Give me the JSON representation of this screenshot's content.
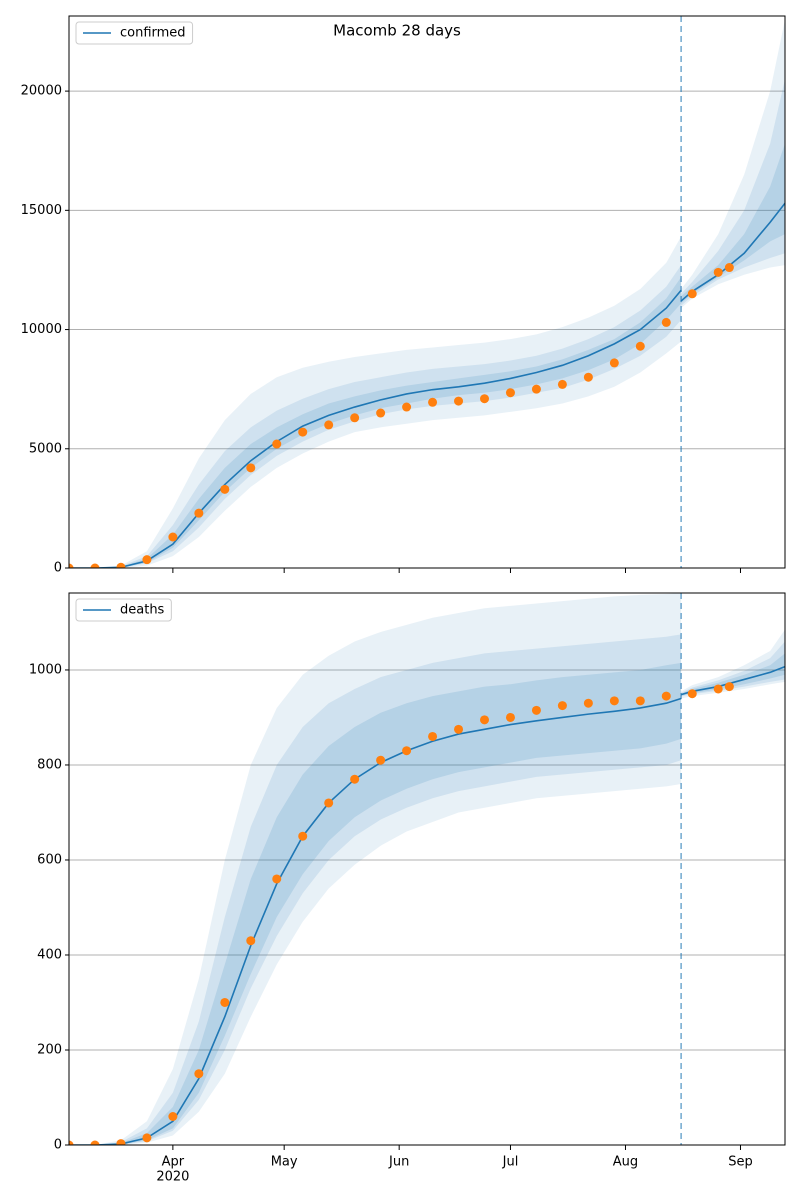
{
  "chart_data": [
    {
      "type": "line",
      "title": "Macomb 28 days",
      "xlim": [
        "2020-03-04",
        "2020-09-13"
      ],
      "xticks": [
        {
          "value": "2020-04-01",
          "label": ""
        },
        {
          "value": "2020-05-01",
          "label": ""
        },
        {
          "value": "2020-06-01",
          "label": ""
        },
        {
          "value": "2020-07-01",
          "label": ""
        },
        {
          "value": "2020-08-01",
          "label": ""
        },
        {
          "value": "2020-09-01",
          "label": ""
        }
      ],
      "ylim": [
        0,
        23150
      ],
      "yticks": [
        0,
        5000,
        10000,
        15000,
        20000
      ],
      "grid": true,
      "legend": "upper left",
      "vline": "2020-08-16",
      "series": [
        {
          "name": "confirmed",
          "color": "#1f77b4",
          "x": [
            "2020-03-04",
            "2020-03-11",
            "2020-03-18",
            "2020-03-25",
            "2020-04-01",
            "2020-04-08",
            "2020-04-15",
            "2020-04-22",
            "2020-04-29",
            "2020-05-06",
            "2020-05-13",
            "2020-05-20",
            "2020-05-27",
            "2020-06-03",
            "2020-06-10",
            "2020-06-17",
            "2020-06-24",
            "2020-07-01",
            "2020-07-08",
            "2020-07-15",
            "2020-07-22",
            "2020-07-29",
            "2020-08-05",
            "2020-08-12",
            "2020-08-16"
          ],
          "values": [
            0,
            0,
            30,
            300,
            1000,
            2300,
            3500,
            4500,
            5300,
            5950,
            6400,
            6750,
            7050,
            7300,
            7480,
            7600,
            7750,
            7950,
            8200,
            8500,
            8900,
            9400,
            10000,
            10900,
            11650
          ],
          "bands": [
            {
              "lower": [
                0,
                0,
                0,
                100,
                500,
                1300,
                2400,
                3400,
                4200,
                4800,
                5300,
                5700,
                5900,
                6050,
                6200,
                6300,
                6400,
                6550,
                6700,
                6900,
                7200,
                7600,
                8200,
                9000,
                9500
              ],
              "upper": [
                0,
                0,
                100,
                700,
                2500,
                4600,
                6200,
                7300,
                8000,
                8400,
                8650,
                8850,
                9000,
                9150,
                9250,
                9350,
                9450,
                9600,
                9800,
                10100,
                10500,
                11000,
                11700,
                12800,
                13900
              ]
            },
            {
              "lower": [
                0,
                0,
                10,
                200,
                700,
                1700,
                2900,
                3900,
                4700,
                5300,
                5800,
                6150,
                6450,
                6650,
                6800,
                6900,
                7000,
                7150,
                7350,
                7550,
                7900,
                8350,
                8900,
                9700,
                10400
              ],
              "upper": [
                0,
                0,
                70,
                500,
                1800,
                3500,
                4900,
                5900,
                6600,
                7100,
                7500,
                7800,
                8000,
                8200,
                8350,
                8450,
                8550,
                8700,
                8900,
                9200,
                9600,
                10100,
                10800,
                11800,
                12700
              ]
            },
            {
              "lower": [
                0,
                0,
                20,
                220,
                850,
                2000,
                3200,
                4200,
                5000,
                5600,
                6050,
                6400,
                6700,
                6900,
                7100,
                7250,
                7350,
                7500,
                7700,
                7950,
                8300,
                8750,
                9400,
                10400,
                11100
              ],
              "upper": [
                0,
                0,
                50,
                400,
                1400,
                2900,
                4200,
                5200,
                5900,
                6450,
                6900,
                7200,
                7450,
                7650,
                7800,
                7950,
                8100,
                8250,
                8450,
                8750,
                9150,
                9600,
                10300,
                11300,
                12200
              ]
            }
          ],
          "forecast": {
            "x": [
              "2020-08-16",
              "2020-08-19",
              "2020-08-26",
              "2020-09-02",
              "2020-09-09",
              "2020-09-13"
            ],
            "values": [
              11200,
              11600,
              12300,
              13200,
              14500,
              15300
            ],
            "bands": [
              {
                "lower": [
                  10900,
                  11300,
                  11900,
                  12300,
                  12600,
                  12700
                ],
                "upper": [
                  11700,
                  12300,
                  14000,
                  16500,
                  20000,
                  23000
                ]
              },
              {
                "lower": [
                  11000,
                  11400,
                  12100,
                  12600,
                  13000,
                  13200
                ],
                "upper": [
                  11500,
                  12000,
                  13300,
                  15000,
                  17800,
                  20500
                ]
              },
              {
                "lower": [
                  11100,
                  11500,
                  12200,
                  12900,
                  13700,
                  14000
                ],
                "upper": [
                  11400,
                  11800,
                  12700,
                  14000,
                  16000,
                  17800
                ]
              }
            ]
          }
        }
      ],
      "observed": {
        "color": "#ff7f0e",
        "x": [
          "2020-03-04",
          "2020-03-11",
          "2020-03-18",
          "2020-03-25",
          "2020-04-01",
          "2020-04-08",
          "2020-04-15",
          "2020-04-22",
          "2020-04-29",
          "2020-05-06",
          "2020-05-13",
          "2020-05-20",
          "2020-05-27",
          "2020-06-03",
          "2020-06-10",
          "2020-06-17",
          "2020-06-24",
          "2020-07-01",
          "2020-07-08",
          "2020-07-15",
          "2020-07-22",
          "2020-07-29",
          "2020-08-05",
          "2020-08-12",
          "2020-08-19",
          "2020-08-26",
          "2020-08-29"
        ],
        "values": [
          0,
          0,
          30,
          350,
          1300,
          2300,
          3300,
          4200,
          5200,
          5700,
          6000,
          6300,
          6500,
          6750,
          6950,
          7000,
          7100,
          7350,
          7500,
          7700,
          8000,
          8600,
          9300,
          10300,
          11500,
          12400,
          12600
        ]
      }
    },
    {
      "type": "line",
      "xlim": [
        "2020-03-04",
        "2020-09-13"
      ],
      "xticks": [
        {
          "value": "2020-04-01",
          "label": "Apr"
        },
        {
          "value": "2020-05-01",
          "label": "May"
        },
        {
          "value": "2020-06-01",
          "label": "Jun"
        },
        {
          "value": "2020-07-01",
          "label": "Jul"
        },
        {
          "value": "2020-08-01",
          "label": "Aug"
        },
        {
          "value": "2020-09-01",
          "label": "Sep"
        }
      ],
      "x_year_label": "2020",
      "ylim": [
        0,
        1162
      ],
      "yticks": [
        0,
        200,
        400,
        600,
        800,
        1000
      ],
      "grid": true,
      "legend": "upper left",
      "vline": "2020-08-16",
      "series": [
        {
          "name": "deaths",
          "color": "#1f77b4",
          "x": [
            "2020-03-04",
            "2020-03-11",
            "2020-03-18",
            "2020-03-25",
            "2020-04-01",
            "2020-04-08",
            "2020-04-15",
            "2020-04-22",
            "2020-04-29",
            "2020-05-06",
            "2020-05-13",
            "2020-05-20",
            "2020-05-27",
            "2020-06-03",
            "2020-06-10",
            "2020-06-17",
            "2020-06-24",
            "2020-07-01",
            "2020-07-08",
            "2020-07-15",
            "2020-07-22",
            "2020-07-29",
            "2020-08-05",
            "2020-08-12",
            "2020-08-16"
          ],
          "values": [
            0,
            0,
            2,
            15,
            50,
            140,
            270,
            420,
            550,
            650,
            720,
            770,
            805,
            830,
            850,
            865,
            875,
            885,
            893,
            900,
            907,
            913,
            920,
            930,
            940
          ],
          "bands": [
            {
              "lower": [
                0,
                0,
                0,
                5,
                20,
                70,
                150,
                270,
                380,
                470,
                540,
                590,
                630,
                660,
                680,
                700,
                710,
                720,
                730,
                735,
                740,
                745,
                750,
                755,
                760
              ],
              "upper": [
                0,
                0,
                10,
                50,
                160,
                350,
                600,
                800,
                920,
                990,
                1030,
                1060,
                1080,
                1095,
                1110,
                1120,
                1130,
                1135,
                1140,
                1145,
                1150,
                1155,
                1158,
                1160,
                1162
              ]
            },
            {
              "lower": [
                0,
                0,
                1,
                8,
                30,
                95,
                200,
                330,
                440,
                530,
                600,
                650,
                685,
                710,
                730,
                745,
                755,
                765,
                775,
                780,
                785,
                790,
                795,
                800,
                810
              ],
              "upper": [
                0,
                0,
                6,
                35,
                110,
                260,
                480,
                670,
                800,
                880,
                930,
                960,
                985,
                1000,
                1015,
                1025,
                1035,
                1040,
                1045,
                1050,
                1055,
                1060,
                1065,
                1070,
                1075
              ]
            },
            {
              "lower": [
                0,
                0,
                1,
                10,
                35,
                110,
                230,
                360,
                480,
                570,
                640,
                690,
                725,
                750,
                770,
                785,
                795,
                805,
                815,
                820,
                825,
                830,
                835,
                845,
                855
              ],
              "upper": [
                0,
                0,
                4,
                25,
                80,
                200,
                380,
                560,
                690,
                780,
                840,
                880,
                910,
                930,
                945,
                955,
                965,
                970,
                978,
                985,
                990,
                995,
                1000,
                1010,
                1015
              ]
            }
          ],
          "forecast": {
            "x": [
              "2020-08-16",
              "2020-08-19",
              "2020-08-26",
              "2020-09-02",
              "2020-09-09",
              "2020-09-13"
            ],
            "values": [
              948,
              955,
              965,
              980,
              995,
              1007
            ],
            "bands": [
              {
                "lower": [
                  940,
                  945,
                  952,
                  960,
                  970,
                  975
                ],
                "upper": [
                  955,
                  968,
                  985,
                  1010,
                  1040,
                  1085
                ]
              },
              {
                "lower": [
                  944,
                  949,
                  956,
                  965,
                  975,
                  980
                ],
                "upper": [
                  952,
                  963,
                  978,
                  998,
                  1025,
                  1060
                ]
              },
              {
                "lower": [
                  946,
                  951,
                  959,
                  970,
                  982,
                  990
                ],
                "upper": [
                  950,
                  960,
                  973,
                  990,
                  1010,
                  1035
                ]
              }
            ]
          }
        }
      ],
      "observed": {
        "color": "#ff7f0e",
        "x": [
          "2020-03-04",
          "2020-03-11",
          "2020-03-18",
          "2020-03-25",
          "2020-04-01",
          "2020-04-08",
          "2020-04-15",
          "2020-04-22",
          "2020-04-29",
          "2020-05-06",
          "2020-05-13",
          "2020-05-20",
          "2020-05-27",
          "2020-06-03",
          "2020-06-10",
          "2020-06-17",
          "2020-06-24",
          "2020-07-01",
          "2020-07-08",
          "2020-07-15",
          "2020-07-22",
          "2020-07-29",
          "2020-08-05",
          "2020-08-12",
          "2020-08-19",
          "2020-08-26",
          "2020-08-29"
        ],
        "values": [
          0,
          0,
          3,
          15,
          60,
          150,
          300,
          430,
          560,
          650,
          720,
          770,
          810,
          830,
          860,
          875,
          895,
          900,
          915,
          925,
          930,
          935,
          935,
          945,
          950,
          960,
          965
        ]
      }
    }
  ]
}
